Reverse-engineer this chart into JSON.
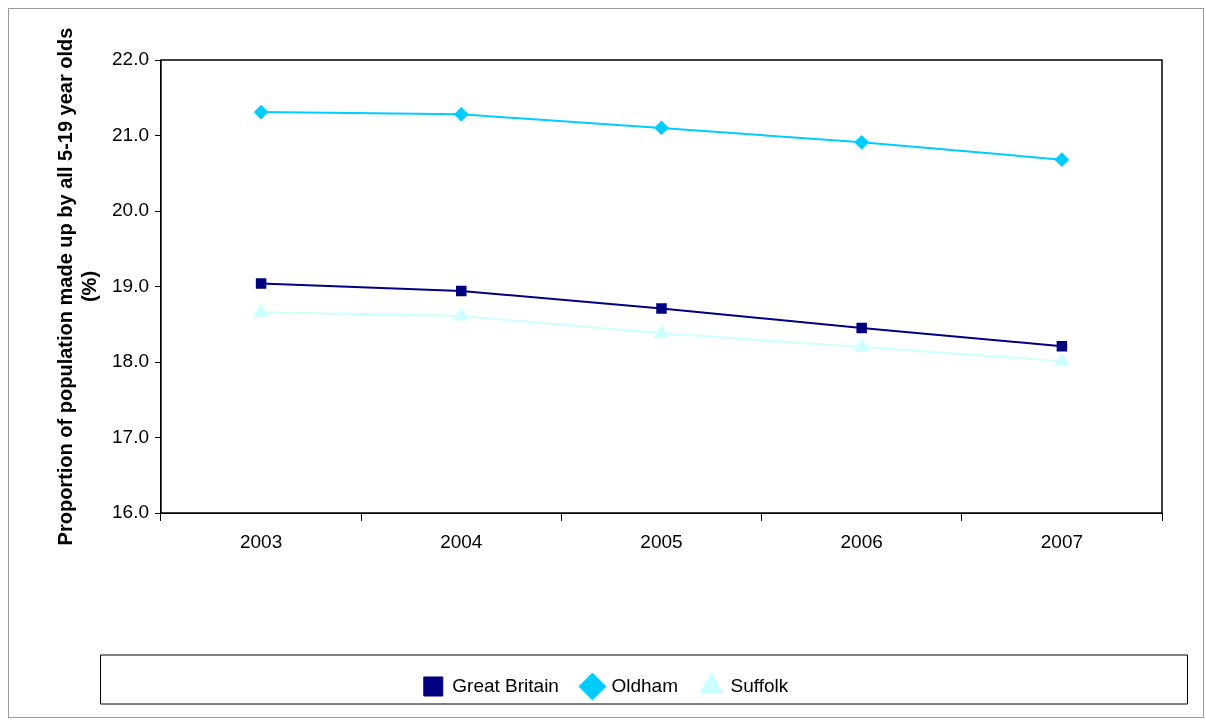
{
  "chart_data": {
    "type": "line",
    "ylabel": "Proportion of population made up by all 5-19 year olds (%)",
    "categories": [
      "2003",
      "2004",
      "2005",
      "2006",
      "2007"
    ],
    "series": [
      {
        "name": "Great Britain",
        "color": "#000080",
        "marker": "square",
        "values": [
          19.04,
          18.94,
          18.71,
          18.45,
          18.21
        ]
      },
      {
        "name": "Oldham",
        "color": "#00ccff",
        "marker": "diamond",
        "values": [
          21.31,
          21.28,
          21.1,
          20.91,
          20.68
        ]
      },
      {
        "name": "Suffolk",
        "color": "#ccffff",
        "marker": "triangle",
        "values": [
          18.66,
          18.61,
          18.38,
          18.2,
          18.01
        ]
      }
    ],
    "ylim": [
      16,
      22
    ],
    "yticks": [
      {
        "value": 16,
        "label": "16.0"
      },
      {
        "value": 17,
        "label": "17.0"
      },
      {
        "value": 18,
        "label": "18.0"
      },
      {
        "value": 19,
        "label": "19.0"
      },
      {
        "value": 20,
        "label": "20.0"
      },
      {
        "value": 21,
        "label": "21.0"
      },
      {
        "value": 22,
        "label": "22.0"
      }
    ],
    "grid": false,
    "legend": "bottom",
    "line_style": "solid"
  }
}
